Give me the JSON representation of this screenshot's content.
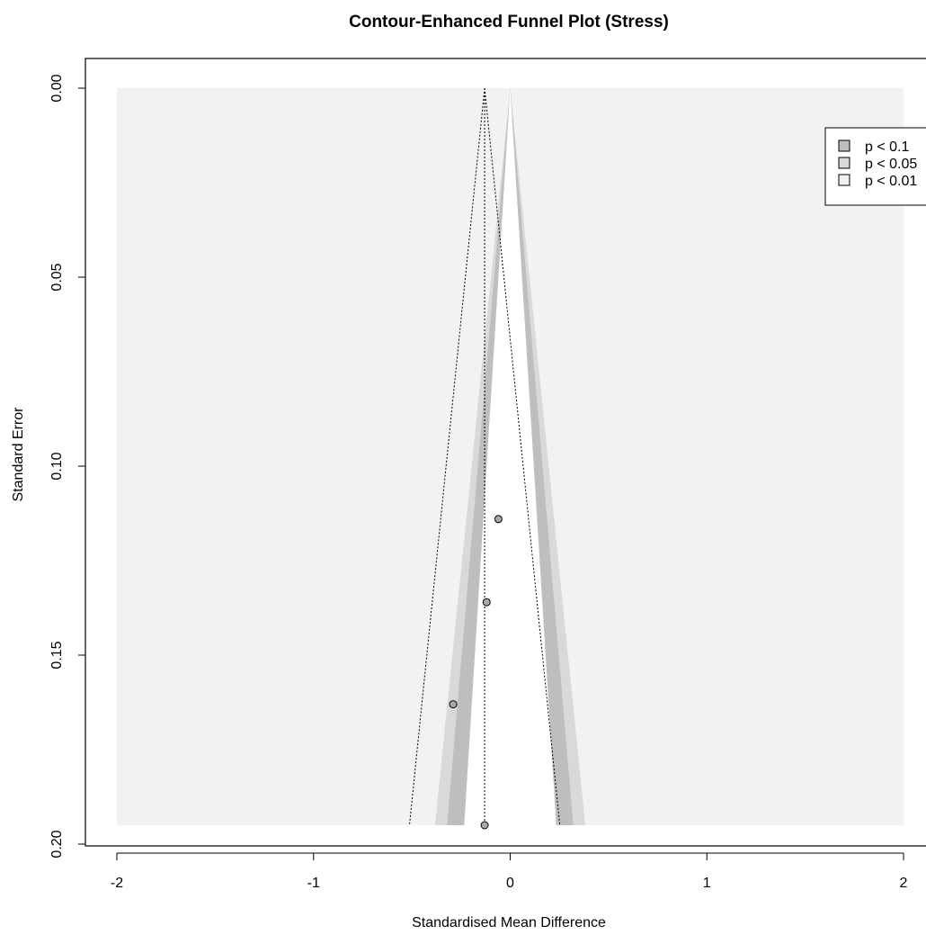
{
  "chart_data": {
    "type": "scatter",
    "title": "Contour-Enhanced Funnel Plot (Stress)",
    "xlabel": "Standardised Mean Difference",
    "ylabel": "Standard Error",
    "xlim": [
      -2,
      2
    ],
    "ylim": [
      0,
      0.195
    ],
    "y_reversed": true,
    "x_ticks": [
      -2,
      -1,
      0,
      1,
      2
    ],
    "x_tick_labels": [
      "-2",
      "-1",
      "0",
      "1",
      "2"
    ],
    "y_ticks": [
      0,
      0.05,
      0.1,
      0.15,
      0.2
    ],
    "y_tick_labels": [
      "0.00",
      "0.05",
      "0.10",
      "0.15",
      "0.20"
    ],
    "pooled_estimate": -0.13,
    "contour_center": 0,
    "contours": [
      {
        "label": "p < 0.1",
        "z": 1.645,
        "color": "#bebebe"
      },
      {
        "label": "p < 0.05",
        "z": 1.96,
        "color": "#d9d9d9"
      },
      {
        "label": "p < 0.01",
        "z": 2.576,
        "color": "#f2f2f2"
      }
    ],
    "points": [
      {
        "x": -0.06,
        "y": 0.114
      },
      {
        "x": -0.12,
        "y": 0.136
      },
      {
        "x": -0.29,
        "y": 0.163
      },
      {
        "x": -0.13,
        "y": 0.195
      }
    ],
    "point_color": "#a9a9a9",
    "legend": {
      "position": "top-right",
      "entries": [
        "p < 0.1",
        "p < 0.05",
        "p < 0.01"
      ]
    }
  }
}
